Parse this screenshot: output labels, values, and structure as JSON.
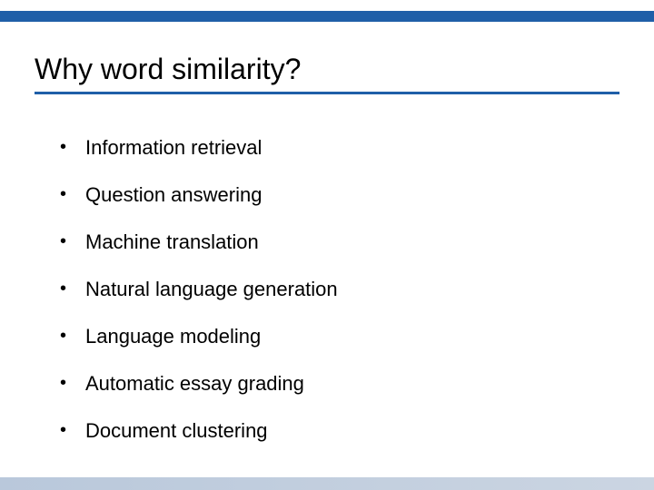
{
  "slide": {
    "title": "Why word similarity?",
    "title_fontsize": 32,
    "title_color": "#000000",
    "accent_color": "#1f5fa8",
    "underline_color": "#1f5fa8",
    "underline_thickness": 3,
    "top_bar_height": 12,
    "bottom_bar_gradient_from": "#b9c8db",
    "bottom_bar_gradient_to": "#cbd5e2",
    "background_color": "#ffffff",
    "bullet_fontsize": 22,
    "bullet_color": "#000000",
    "bullet_marker": "•",
    "bullets": [
      "Information retrieval",
      "Question answering",
      "Machine translation",
      "Natural language generation",
      "Language modeling",
      "Automatic essay grading",
      "Document clustering"
    ]
  }
}
